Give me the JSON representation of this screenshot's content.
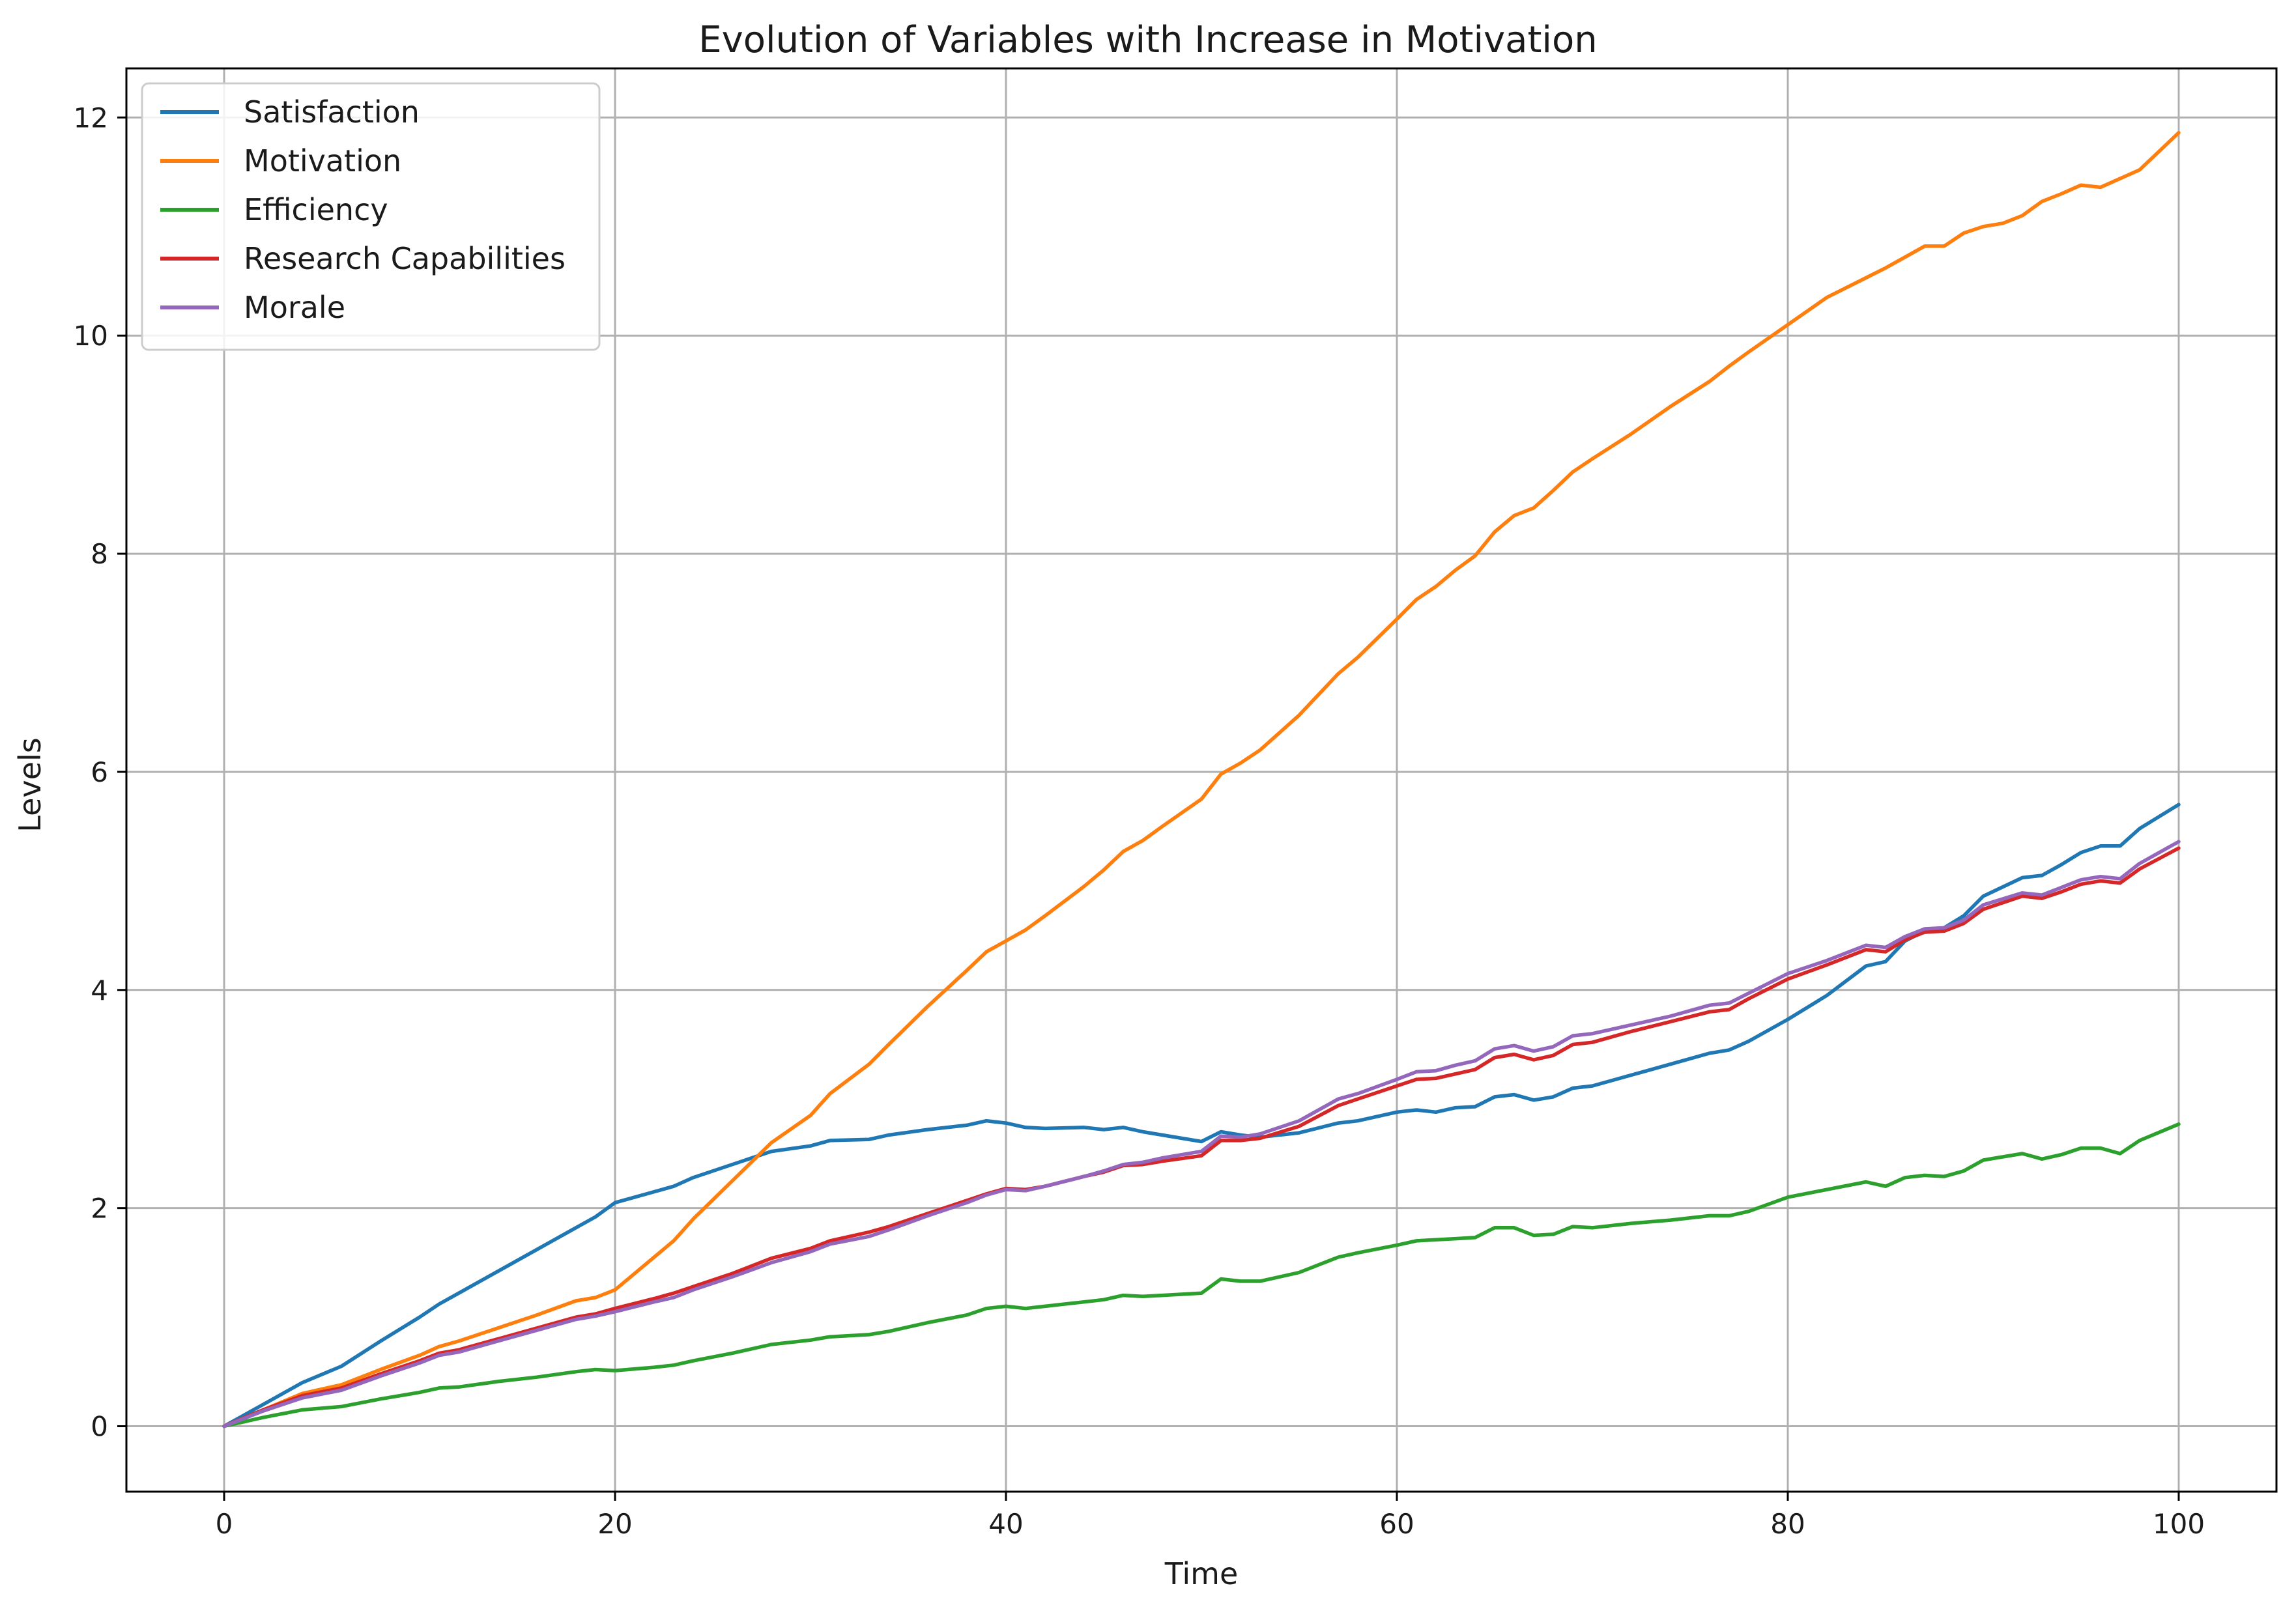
{
  "chart_data": {
    "type": "line",
    "title": "Evolution of Variables with Increase in Motivation",
    "xlabel": "Time",
    "ylabel": "Levels",
    "xlim": [
      -5,
      105
    ],
    "ylim": [
      -0.6,
      12.45
    ],
    "x_ticks": [
      0,
      20,
      40,
      60,
      80,
      100
    ],
    "y_ticks": [
      0,
      2,
      4,
      6,
      8,
      10,
      12
    ],
    "x_tick_labels": [
      "0",
      "20",
      "40",
      "60",
      "80",
      "100"
    ],
    "y_tick_labels": [
      "0",
      "2",
      "4",
      "6",
      "8",
      "10",
      "12"
    ],
    "grid": true,
    "legend_position": "top-left",
    "series": [
      {
        "name": "Satisfaction",
        "color": "#1f77b4",
        "x": [
          0,
          2,
          4,
          6,
          8,
          10,
          11,
          12,
          14,
          16,
          18,
          19,
          20,
          22,
          23,
          24,
          26,
          28,
          30,
          31,
          33,
          34,
          36,
          38,
          39,
          40,
          41,
          42,
          44,
          45,
          46,
          47,
          48,
          50,
          51,
          52,
          53,
          55,
          57,
          58,
          60,
          61,
          62,
          63,
          64,
          65,
          66,
          67,
          68,
          69,
          70,
          72,
          74,
          76,
          77,
          78,
          80,
          82,
          84,
          85,
          86,
          87,
          88,
          89,
          90,
          92,
          93,
          94,
          95,
          96,
          97,
          98,
          100
        ],
        "y": [
          0,
          0.2,
          0.4,
          0.55,
          0.78,
          1.0,
          1.12,
          1.22,
          1.42,
          1.62,
          1.82,
          1.92,
          2.05,
          2.15,
          2.2,
          2.28,
          2.4,
          2.52,
          2.57,
          2.62,
          2.63,
          2.67,
          2.72,
          2.76,
          2.8,
          2.78,
          2.74,
          2.73,
          2.74,
          2.72,
          2.74,
          2.7,
          2.67,
          2.61,
          2.7,
          2.67,
          2.65,
          2.69,
          2.78,
          2.8,
          2.88,
          2.9,
          2.88,
          2.92,
          2.93,
          3.02,
          3.04,
          2.99,
          3.02,
          3.1,
          3.12,
          3.22,
          3.32,
          3.42,
          3.45,
          3.53,
          3.73,
          3.95,
          4.22,
          4.26,
          4.45,
          4.54,
          4.57,
          4.68,
          4.86,
          5.03,
          5.05,
          5.15,
          5.26,
          5.32,
          5.32,
          5.48,
          5.7
        ]
      },
      {
        "name": "Motivation",
        "color": "#ff7f0e",
        "x": [
          0,
          2,
          4,
          6,
          8,
          10,
          11,
          12,
          14,
          16,
          18,
          19,
          20,
          21,
          22,
          23,
          24,
          26,
          28,
          30,
          31,
          33,
          34,
          36,
          38,
          39,
          40,
          41,
          42,
          44,
          45,
          46,
          47,
          48,
          50,
          51,
          52,
          53,
          55,
          57,
          58,
          60,
          61,
          62,
          63,
          64,
          65,
          66,
          67,
          68,
          69,
          70,
          72,
          74,
          76,
          77,
          78,
          80,
          82,
          84,
          85,
          86,
          87,
          88,
          89,
          90,
          91,
          92,
          93,
          94,
          95,
          96,
          97,
          98,
          100
        ],
        "y": [
          0,
          0.15,
          0.3,
          0.38,
          0.52,
          0.65,
          0.73,
          0.78,
          0.9,
          1.02,
          1.15,
          1.18,
          1.25,
          1.4,
          1.55,
          1.7,
          1.9,
          2.25,
          2.6,
          2.85,
          3.05,
          3.32,
          3.5,
          3.85,
          4.18,
          4.35,
          4.45,
          4.55,
          4.68,
          4.95,
          5.1,
          5.27,
          5.37,
          5.5,
          5.75,
          5.98,
          6.08,
          6.2,
          6.52,
          6.9,
          7.05,
          7.4,
          7.58,
          7.7,
          7.85,
          7.98,
          8.2,
          8.35,
          8.42,
          8.58,
          8.75,
          8.87,
          9.1,
          9.35,
          9.58,
          9.72,
          9.85,
          10.1,
          10.35,
          10.53,
          10.62,
          10.72,
          10.82,
          10.82,
          10.94,
          11.0,
          11.03,
          11.1,
          11.23,
          11.3,
          11.38,
          11.36,
          11.44,
          11.52,
          11.86
        ]
      },
      {
        "name": "Efficiency",
        "color": "#2ca02c",
        "x": [
          0,
          2,
          4,
          6,
          8,
          10,
          11,
          12,
          14,
          16,
          18,
          19,
          20,
          22,
          23,
          24,
          26,
          28,
          30,
          31,
          33,
          34,
          36,
          38,
          39,
          40,
          41,
          42,
          44,
          45,
          46,
          47,
          48,
          50,
          51,
          52,
          53,
          55,
          57,
          58,
          60,
          61,
          62,
          63,
          64,
          65,
          66,
          67,
          68,
          69,
          70,
          72,
          74,
          76,
          77,
          78,
          80,
          82,
          84,
          85,
          86,
          87,
          88,
          89,
          90,
          92,
          93,
          94,
          95,
          96,
          97,
          98,
          100
        ],
        "y": [
          0,
          0.08,
          0.15,
          0.18,
          0.25,
          0.31,
          0.35,
          0.36,
          0.41,
          0.45,
          0.5,
          0.52,
          0.51,
          0.54,
          0.56,
          0.6,
          0.67,
          0.75,
          0.79,
          0.82,
          0.84,
          0.87,
          0.95,
          1.02,
          1.08,
          1.1,
          1.08,
          1.1,
          1.14,
          1.16,
          1.2,
          1.19,
          1.2,
          1.22,
          1.35,
          1.33,
          1.33,
          1.41,
          1.55,
          1.59,
          1.66,
          1.7,
          1.71,
          1.72,
          1.73,
          1.82,
          1.82,
          1.75,
          1.76,
          1.83,
          1.82,
          1.86,
          1.89,
          1.93,
          1.93,
          1.97,
          2.1,
          2.17,
          2.24,
          2.2,
          2.28,
          2.3,
          2.29,
          2.34,
          2.44,
          2.5,
          2.45,
          2.49,
          2.55,
          2.55,
          2.5,
          2.62,
          2.77
        ]
      },
      {
        "name": "Research Capabilities",
        "color": "#d62728",
        "x": [
          0,
          2,
          4,
          6,
          8,
          10,
          11,
          12,
          14,
          16,
          18,
          19,
          20,
          22,
          23,
          24,
          26,
          28,
          30,
          31,
          33,
          34,
          36,
          38,
          39,
          40,
          41,
          42,
          44,
          45,
          46,
          47,
          48,
          50,
          51,
          52,
          53,
          55,
          57,
          58,
          60,
          61,
          62,
          63,
          64,
          65,
          66,
          67,
          68,
          69,
          70,
          72,
          74,
          76,
          77,
          78,
          80,
          82,
          84,
          85,
          86,
          87,
          88,
          89,
          90,
          92,
          93,
          94,
          95,
          96,
          97,
          98,
          100
        ],
        "y": [
          0,
          0.15,
          0.28,
          0.35,
          0.48,
          0.6,
          0.67,
          0.7,
          0.8,
          0.9,
          1.0,
          1.03,
          1.08,
          1.17,
          1.22,
          1.28,
          1.4,
          1.54,
          1.63,
          1.7,
          1.78,
          1.83,
          1.95,
          2.07,
          2.13,
          2.18,
          2.17,
          2.2,
          2.29,
          2.33,
          2.39,
          2.4,
          2.43,
          2.48,
          2.62,
          2.62,
          2.64,
          2.75,
          2.94,
          3.0,
          3.12,
          3.18,
          3.19,
          3.23,
          3.27,
          3.38,
          3.41,
          3.36,
          3.4,
          3.5,
          3.52,
          3.62,
          3.71,
          3.8,
          3.82,
          3.92,
          4.1,
          4.23,
          4.37,
          4.35,
          4.46,
          4.53,
          4.54,
          4.61,
          4.74,
          4.86,
          4.84,
          4.9,
          4.97,
          5.0,
          4.98,
          5.11,
          5.3
        ]
      },
      {
        "name": "Morale",
        "color": "#9467bd",
        "x": [
          0,
          2,
          4,
          6,
          8,
          10,
          11,
          12,
          14,
          16,
          18,
          19,
          20,
          22,
          23,
          24,
          26,
          28,
          30,
          31,
          33,
          34,
          36,
          38,
          39,
          40,
          41,
          42,
          44,
          45,
          46,
          47,
          48,
          50,
          51,
          52,
          53,
          55,
          57,
          58,
          60,
          61,
          62,
          63,
          64,
          65,
          66,
          67,
          68,
          69,
          70,
          72,
          74,
          76,
          77,
          78,
          80,
          82,
          84,
          85,
          86,
          87,
          88,
          89,
          90,
          92,
          93,
          94,
          95,
          96,
          97,
          98,
          100
        ],
        "y": [
          0,
          0.14,
          0.26,
          0.33,
          0.46,
          0.58,
          0.65,
          0.68,
          0.78,
          0.88,
          0.98,
          1.01,
          1.05,
          1.14,
          1.18,
          1.25,
          1.37,
          1.5,
          1.6,
          1.67,
          1.74,
          1.8,
          1.93,
          2.05,
          2.12,
          2.17,
          2.16,
          2.2,
          2.29,
          2.34,
          2.4,
          2.42,
          2.46,
          2.52,
          2.66,
          2.65,
          2.68,
          2.8,
          3.0,
          3.05,
          3.18,
          3.25,
          3.26,
          3.31,
          3.35,
          3.46,
          3.49,
          3.44,
          3.48,
          3.58,
          3.6,
          3.68,
          3.76,
          3.86,
          3.88,
          3.97,
          4.15,
          4.27,
          4.41,
          4.39,
          4.49,
          4.56,
          4.57,
          4.64,
          4.78,
          4.89,
          4.87,
          4.94,
          5.01,
          5.04,
          5.02,
          5.16,
          5.36
        ]
      }
    ]
  }
}
